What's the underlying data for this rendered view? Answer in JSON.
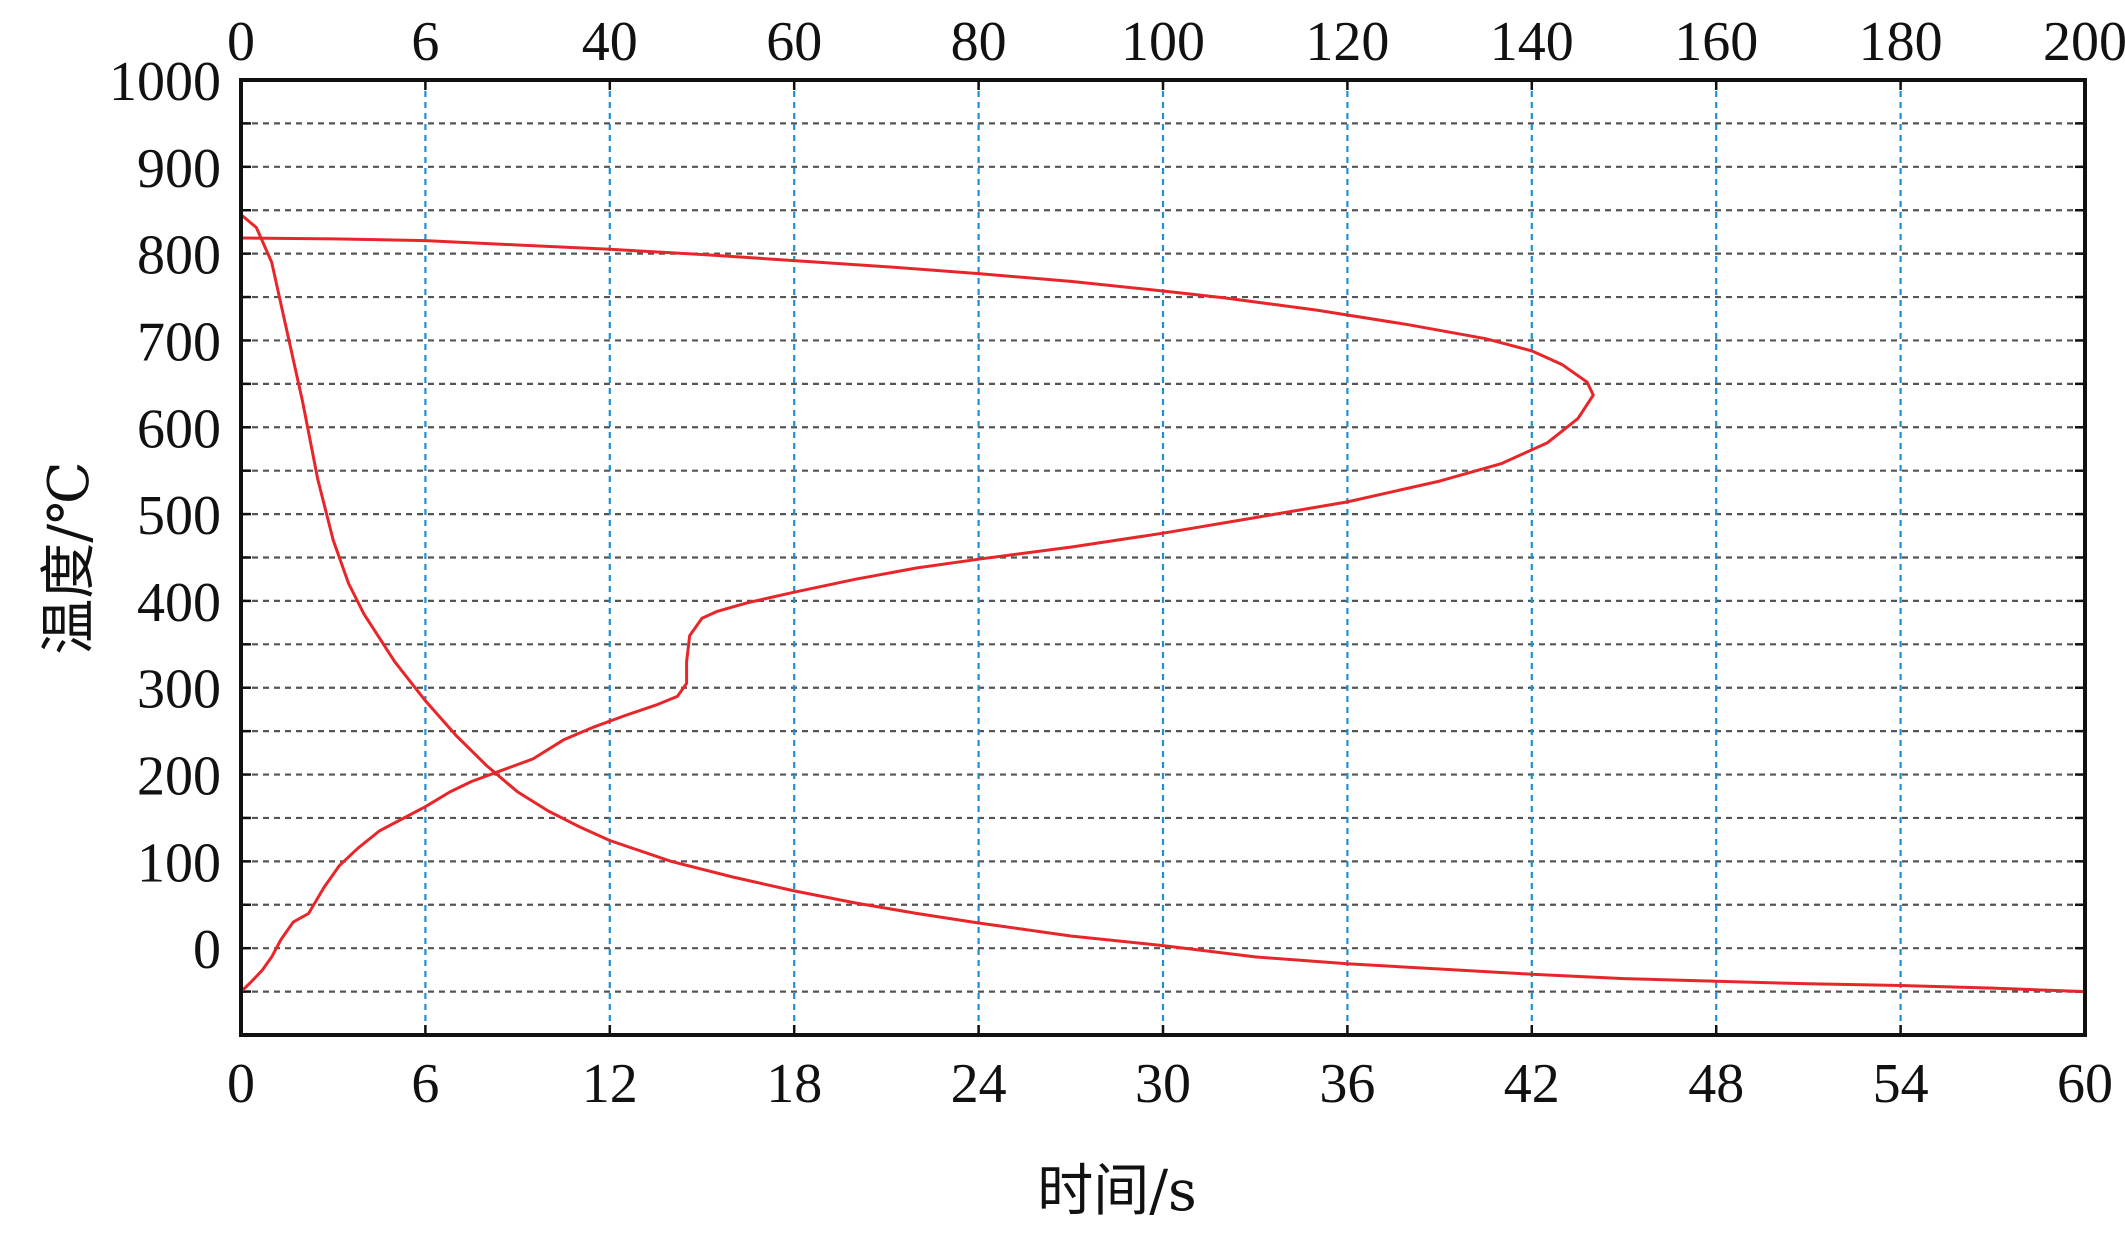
{
  "chart_data": {
    "type": "line",
    "xlabel": "时间/s",
    "ylabel": "温度/℃",
    "xlim": [
      0,
      60
    ],
    "ylim": [
      -100,
      1000
    ],
    "x_tick_labels": [
      "0",
      "6",
      "12",
      "18",
      "24",
      "30",
      "36",
      "42",
      "48",
      "54",
      "60"
    ],
    "x_tick_values": [
      0,
      6,
      12,
      18,
      24,
      30,
      36,
      42,
      48,
      54,
      60
    ],
    "top_tick_labels": [
      "0",
      "6",
      "40",
      "60",
      "80",
      "100",
      "120",
      "140",
      "160",
      "180",
      "200"
    ],
    "y_tick_labels": [
      "1000",
      "900",
      "800",
      "700",
      "600",
      "500",
      "400",
      "300",
      "200",
      "100",
      "0"
    ],
    "y_tick_values": [
      1000,
      900,
      800,
      700,
      600,
      500,
      400,
      300,
      200,
      100,
      0
    ],
    "grid": true,
    "line_color": "#e8262a",
    "series": [
      {
        "points": [
          [
            0,
            845
          ],
          [
            0.5,
            830
          ],
          [
            1.0,
            790
          ],
          [
            1.5,
            710
          ],
          [
            2.0,
            630
          ],
          [
            2.5,
            540
          ],
          [
            3.0,
            470
          ],
          [
            3.5,
            420
          ],
          [
            4.0,
            385
          ],
          [
            5.0,
            330
          ],
          [
            6.0,
            285
          ],
          [
            7.0,
            245
          ],
          [
            8.0,
            210
          ],
          [
            9.0,
            180
          ],
          [
            10.0,
            158
          ],
          [
            11.0,
            140
          ],
          [
            12.0,
            124
          ],
          [
            14.0,
            100
          ],
          [
            16.0,
            82
          ],
          [
            18.0,
            66
          ],
          [
            20.0,
            52
          ],
          [
            22.0,
            40
          ],
          [
            24.0,
            29
          ],
          [
            27.0,
            14
          ],
          [
            30.0,
            3
          ],
          [
            33.0,
            -10
          ],
          [
            36.0,
            -18
          ],
          [
            39.0,
            -24
          ],
          [
            42.0,
            -30
          ],
          [
            45.0,
            -35
          ],
          [
            48.0,
            -38
          ],
          [
            51.0,
            -41
          ],
          [
            54.0,
            -43
          ],
          [
            57.0,
            -46
          ],
          [
            60.0,
            -50
          ]
        ]
      },
      {
        "points": [
          [
            0,
            -50
          ],
          [
            0.3,
            -40
          ],
          [
            0.7,
            -25
          ],
          [
            1.0,
            -10
          ],
          [
            1.3,
            10
          ],
          [
            1.7,
            30
          ],
          [
            2.2,
            40
          ],
          [
            2.7,
            70
          ],
          [
            3.2,
            95
          ],
          [
            3.8,
            115
          ],
          [
            4.5,
            135
          ],
          [
            5.3,
            150
          ],
          [
            6.0,
            163
          ],
          [
            6.8,
            180
          ],
          [
            7.5,
            192
          ],
          [
            8.5,
            205
          ],
          [
            9.5,
            218
          ],
          [
            10.5,
            240
          ],
          [
            11.5,
            255
          ],
          [
            12.5,
            268
          ],
          [
            13.5,
            280
          ],
          [
            14.2,
            290
          ],
          [
            14.5,
            305
          ],
          [
            14.5,
            330
          ],
          [
            14.6,
            360
          ],
          [
            15.0,
            380
          ],
          [
            15.5,
            388
          ],
          [
            16.5,
            398
          ],
          [
            18.0,
            410
          ],
          [
            20.0,
            425
          ],
          [
            22.0,
            438
          ],
          [
            24.0,
            448
          ],
          [
            27.0,
            462
          ],
          [
            30.0,
            478
          ],
          [
            33.0,
            496
          ],
          [
            36.0,
            514
          ],
          [
            39.0,
            538
          ],
          [
            41.0,
            558
          ],
          [
            42.5,
            582
          ],
          [
            43.5,
            610
          ],
          [
            44.0,
            637
          ],
          [
            43.8,
            652
          ],
          [
            43.0,
            672
          ],
          [
            42.0,
            688
          ],
          [
            40.5,
            702
          ],
          [
            38.0,
            718
          ],
          [
            35.0,
            735
          ],
          [
            32.0,
            749
          ],
          [
            30.0,
            757
          ],
          [
            27.0,
            768
          ],
          [
            24.0,
            777
          ],
          [
            21.0,
            785
          ],
          [
            18.0,
            792
          ],
          [
            15.0,
            799
          ],
          [
            12.0,
            805
          ],
          [
            9.0,
            810
          ],
          [
            6.0,
            815
          ],
          [
            3.0,
            817
          ],
          [
            0,
            818
          ]
        ]
      }
    ]
  }
}
